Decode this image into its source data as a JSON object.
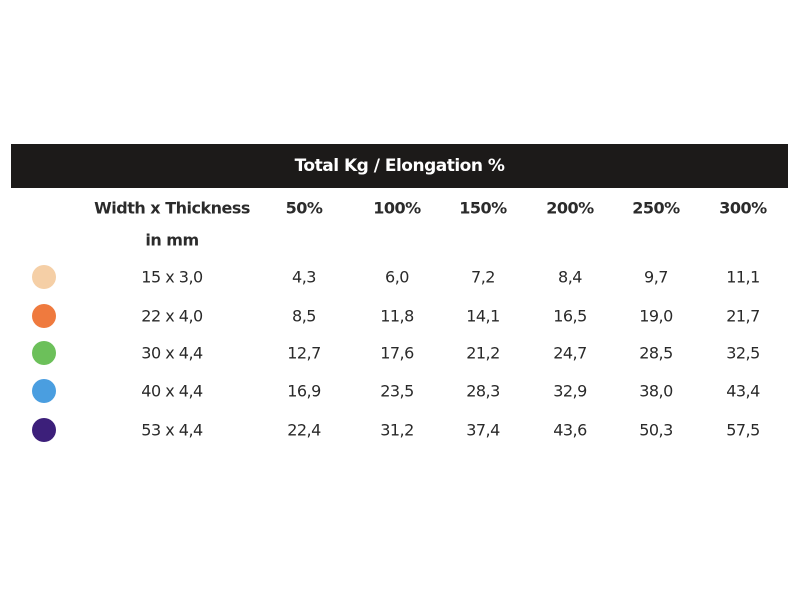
{
  "title": "Total Kg / Elongation %",
  "header": {
    "label_line1": "Width x Thickness",
    "label_line2": "in mm",
    "columns": [
      "50%",
      "100%",
      "150%",
      "200%",
      "250%",
      "300%"
    ]
  },
  "rows": [
    {
      "color": "#f5cfa6",
      "size": "15 x 3,0",
      "values": [
        "4,3",
        "6,0",
        "7,2",
        "8,4",
        "9,7",
        "11,1"
      ]
    },
    {
      "color": "#ef7a3e",
      "size": "22 x 4,0",
      "values": [
        "8,5",
        "11,8",
        "14,1",
        "16,5",
        "19,0",
        "21,7"
      ]
    },
    {
      "color": "#6cc05a",
      "size": "30 x 4,4",
      "values": [
        "12,7",
        "17,6",
        "21,2",
        "24,7",
        "28,5",
        "32,5"
      ]
    },
    {
      "color": "#4a9ee0",
      "size": "40 x 4,4",
      "values": [
        "16,9",
        "23,5",
        "28,3",
        "32,9",
        "38,0",
        "43,4"
      ]
    },
    {
      "color": "#3c1f7a",
      "size": "53 x 4,4",
      "values": [
        "22,4",
        "31,2",
        "37,4",
        "43,6",
        "50,3",
        "57,5"
      ]
    }
  ]
}
